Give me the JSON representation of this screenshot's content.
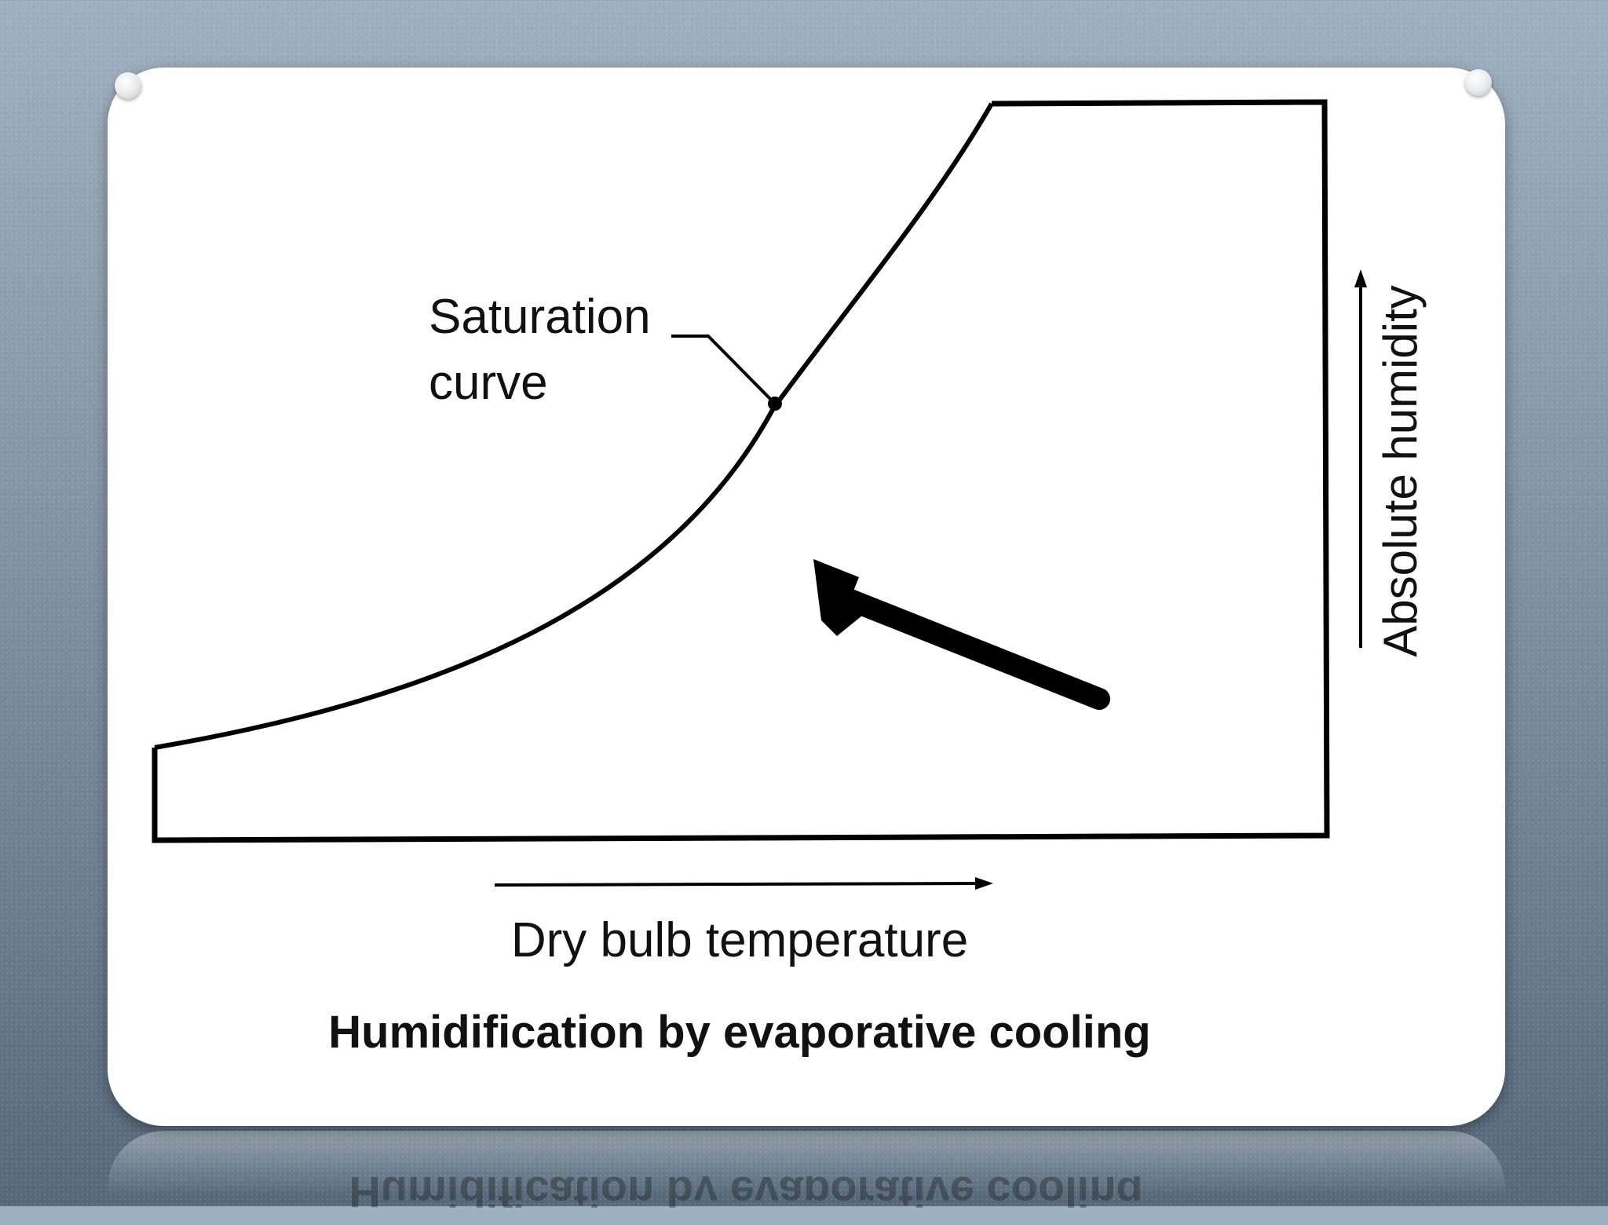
{
  "diagram": {
    "saturation_label_line1": "Saturation",
    "saturation_label_line2": "curve",
    "y_axis_label": "Absolute humidity",
    "x_axis_label": "Dry bulb temperature",
    "caption": "Humidification by evaporative cooling"
  },
  "colors": {
    "background": "#8496a7",
    "card": "#ffffff",
    "ink": "#111111"
  }
}
